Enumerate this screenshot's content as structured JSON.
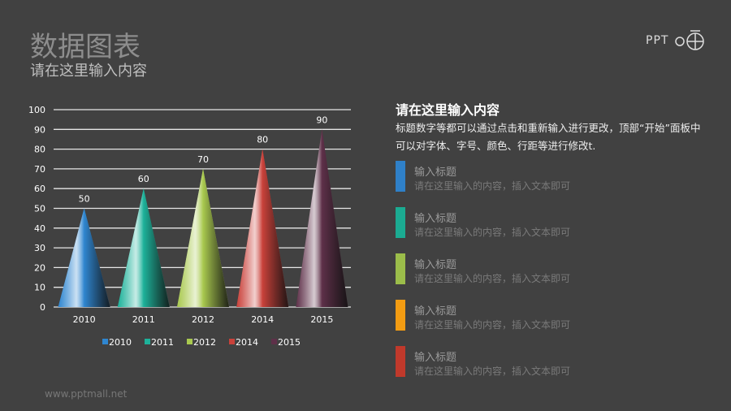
{
  "header": {
    "title": "数据图表",
    "subtitle": "请在这里输入内容"
  },
  "logo": {
    "text": "PPT"
  },
  "right": {
    "heading": "请在这里输入内容",
    "body": "标题数字等都可以通过点击和重新输入进行更改，顶部“开始”面板中可以对字体、字号、颜色、行距等进行修改t.",
    "items": [
      {
        "title": "输入标题",
        "desc": "请在这里输入的内容，插入文本即可",
        "color": "#2f80c8"
      },
      {
        "title": "输入标题",
        "desc": "请在这里输入的内容，插入文本即可",
        "color": "#1bab92"
      },
      {
        "title": "输入标题",
        "desc": "请在这里输入的内容，插入文本即可",
        "color": "#9bbd4a"
      },
      {
        "title": "输入标题",
        "desc": "请在这里输入的内容，插入文本即可",
        "color": "#f39c12"
      },
      {
        "title": "输入标题",
        "desc": "请在这里输入的内容，插入文本即可",
        "color": "#c0392b"
      }
    ]
  },
  "footer": {
    "url": "www.pptmall.net"
  },
  "chart_data": {
    "type": "bar",
    "shape": "cone",
    "categories": [
      "2010",
      "2011",
      "2012",
      "2014",
      "2015"
    ],
    "values": [
      50,
      60,
      70,
      80,
      90
    ],
    "colors": [
      "#2f86d0",
      "#1db29a",
      "#a9c94f",
      "#c9413a",
      "#5e3049"
    ],
    "ylim": [
      0,
      100
    ],
    "yticks": [
      0,
      10,
      20,
      30,
      40,
      50,
      60,
      70,
      80,
      90,
      100
    ],
    "grid": true,
    "legend": "bottom",
    "data_labels": true
  }
}
